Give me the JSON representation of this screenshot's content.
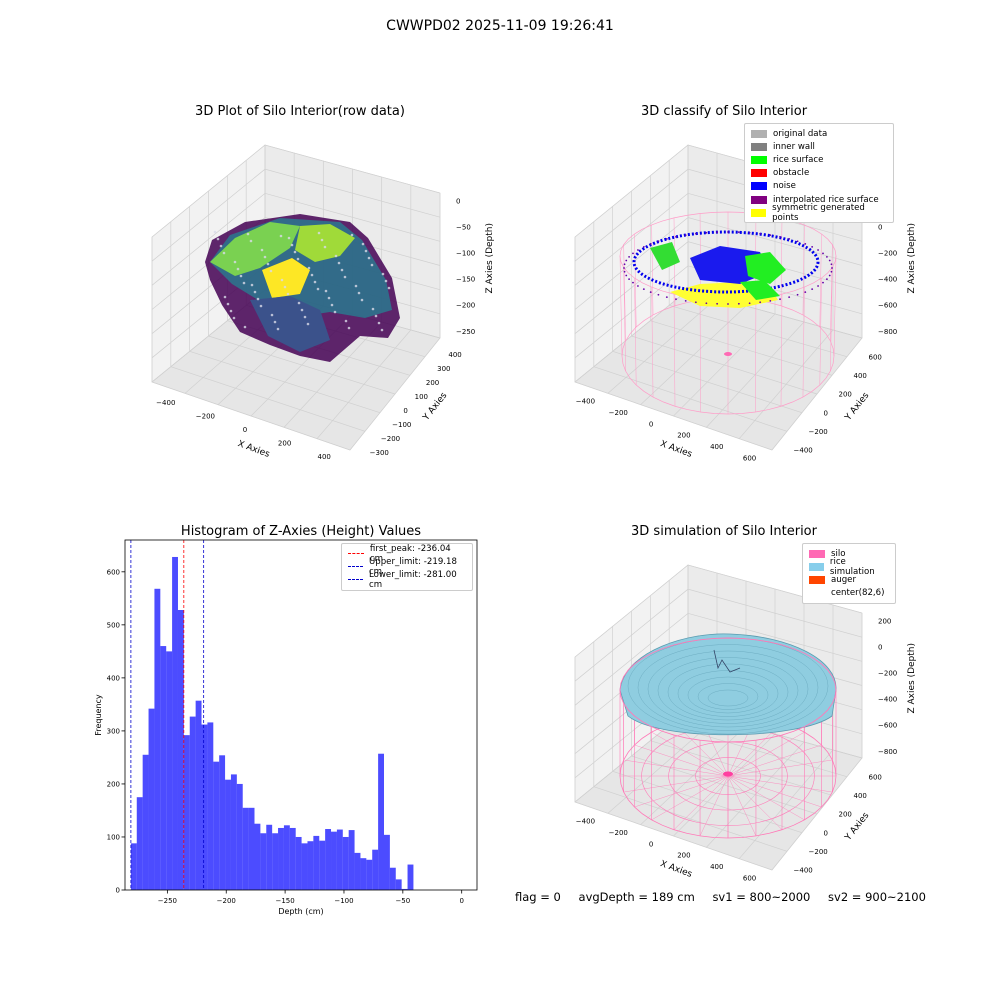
{
  "suptitle": "CWWPD02 2025-11-09 19:26:41",
  "panel1": {
    "title": "3D Plot of Silo Interior(row data)",
    "xlabel": "X Axies",
    "ylabel": "Y Axies",
    "zlabel": "Z Axies (Depth)",
    "xticks": [
      "−400",
      "−200",
      "0",
      "200",
      "400"
    ],
    "yticks": [
      "−300",
      "−200",
      "−100",
      "0",
      "100",
      "200",
      "300",
      "400"
    ],
    "zticks": [
      "0",
      "−50",
      "−100",
      "−150",
      "−200",
      "−250"
    ]
  },
  "panel2": {
    "title": "3D classify of Silo Interior",
    "xlabel": "X Axies",
    "ylabel": "Y Axies",
    "zlabel": "Z Axies (Depth)",
    "xticks": [
      "−400",
      "−200",
      "0",
      "200",
      "400",
      "600"
    ],
    "yticks": [
      "−400",
      "−200",
      "0",
      "200",
      "400",
      "600"
    ],
    "zticks": [
      "200",
      "0",
      "−200",
      "−400",
      "−600",
      "−800"
    ],
    "legend": [
      {
        "label": "original data",
        "color": "#b0b0b0"
      },
      {
        "label": "inner wall",
        "color": "#808080"
      },
      {
        "label": "rice surface",
        "color": "#00ff00"
      },
      {
        "label": "obstacle",
        "color": "#ff0000"
      },
      {
        "label": "noise",
        "color": "#0000ff"
      },
      {
        "label": "interpolated rice surface",
        "color": "#800080"
      },
      {
        "label": "symmetric generated points",
        "color": "#ffff00"
      }
    ]
  },
  "panel4": {
    "title": "3D simulation of Silo Interior",
    "xlabel": "X Axies",
    "ylabel": "Y Axies",
    "zlabel": "Z Axies (Depth)",
    "xticks": [
      "−400",
      "−200",
      "0",
      "200",
      "400",
      "600"
    ],
    "yticks": [
      "−400",
      "−200",
      "0",
      "200",
      "400",
      "600"
    ],
    "zticks": [
      "200",
      "0",
      "−200",
      "−400",
      "−600",
      "−800"
    ],
    "legend": [
      {
        "label": "silo",
        "color": "#ff69b4"
      },
      {
        "label": "rice simulation",
        "color": "#87ceeb"
      },
      {
        "label": "auger",
        "color": "#ff4500"
      },
      {
        "label": "center(82,6)",
        "color": ""
      }
    ]
  },
  "footer": {
    "flag": "flag = 0",
    "avg": "avgDepth = 189 cm",
    "sv1": "sv1 = 800~2000",
    "sv2": "sv2 = 900~2100"
  },
  "chart_data": {
    "type": "bar",
    "title": "Histogram of Z-Axies (Height) Values",
    "xlabel": "Depth (cm)",
    "ylabel": "Frequency",
    "xlim": [
      -286,
      13
    ],
    "ylim": [
      0,
      660
    ],
    "xticks": [
      -250,
      -200,
      -150,
      -100,
      -50,
      0
    ],
    "yticks": [
      0,
      100,
      200,
      300,
      400,
      500,
      600
    ],
    "bin_start": -281.0,
    "bin_width": 5.0,
    "values": [
      88,
      175,
      255,
      342,
      568,
      460,
      450,
      628,
      528,
      292,
      327,
      357,
      312,
      316,
      242,
      254,
      208,
      218,
      200,
      155,
      155,
      125,
      107,
      123,
      107,
      117,
      122,
      117,
      100,
      88,
      92,
      102,
      93,
      115,
      110,
      114,
      100,
      113,
      70,
      60,
      57,
      76,
      257,
      104,
      42,
      20,
      2,
      48
    ],
    "series_color": "#0000ff",
    "vlines": [
      {
        "label": "first_peak: -236.04 cm",
        "x": -236.04,
        "color": "#ff0000"
      },
      {
        "label": "Upper_limit: -219.18 cm",
        "x": -219.18,
        "color": "#0000cc"
      },
      {
        "label": "Lower_limit: -281.00 cm",
        "x": -281.0,
        "color": "#0000cc"
      }
    ],
    "legend_position": "top-right"
  }
}
